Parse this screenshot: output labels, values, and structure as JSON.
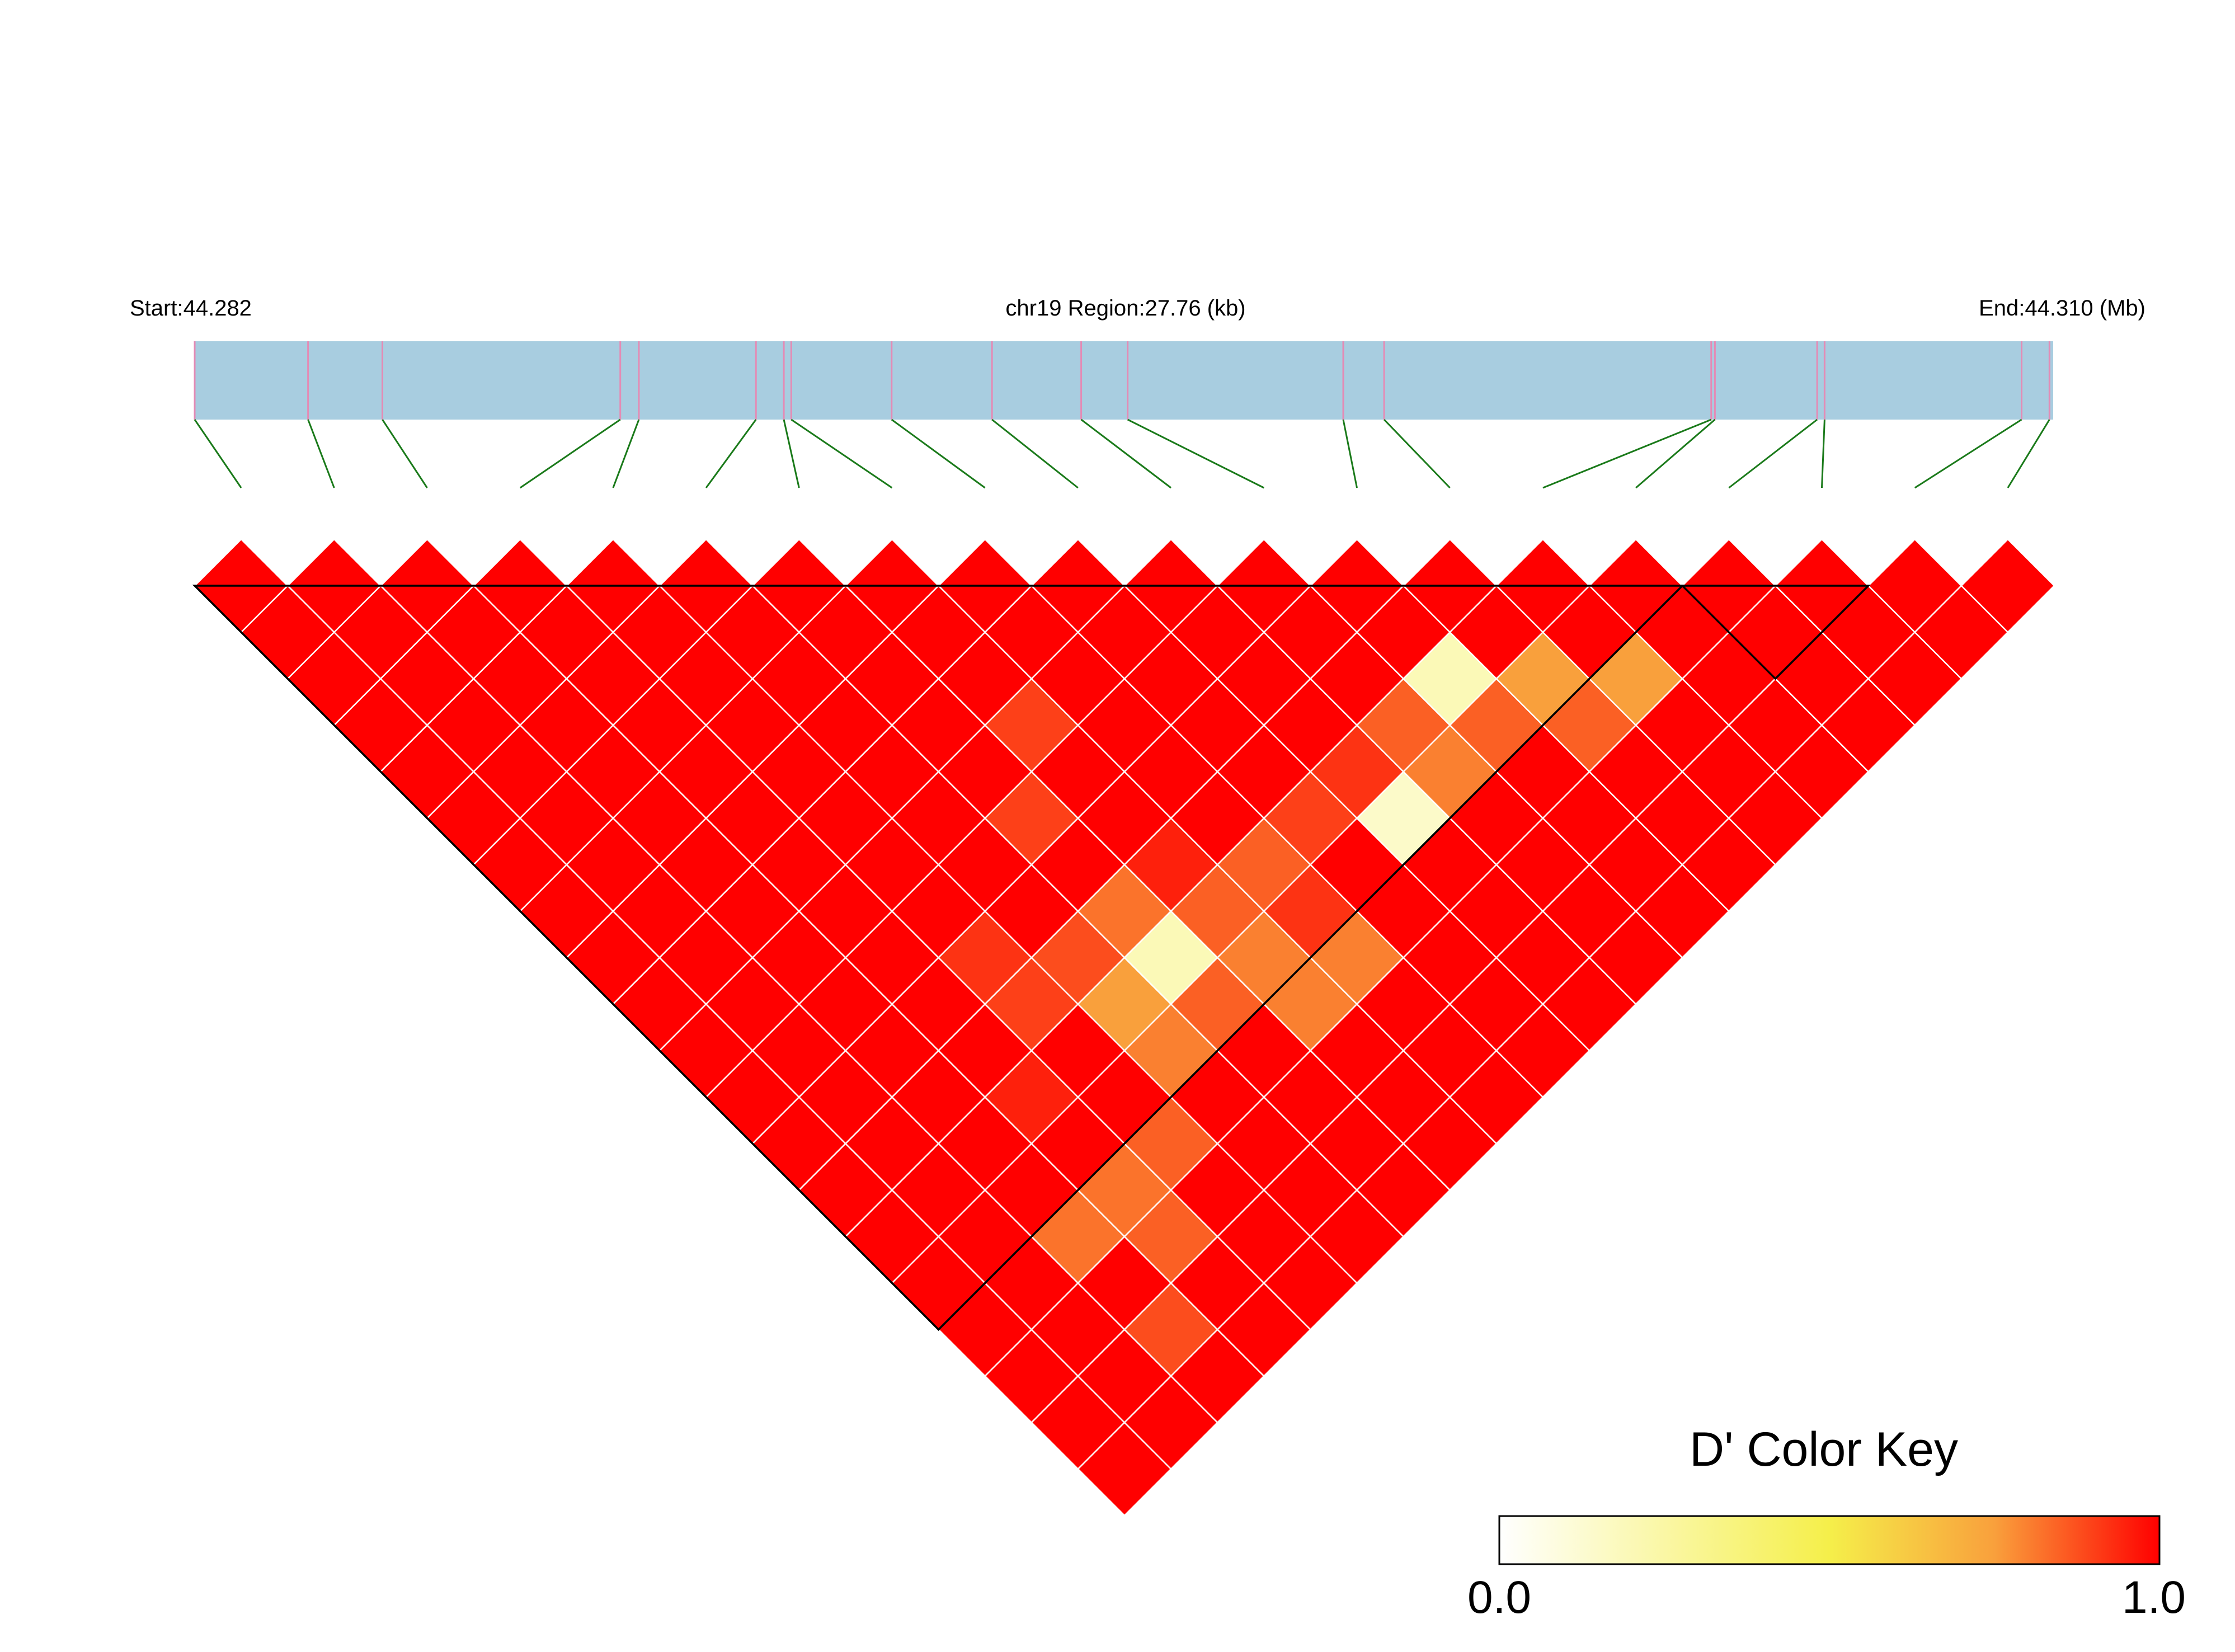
{
  "chart_data": {
    "type": "heatmap",
    "subtype": "LD-triangle",
    "header": {
      "start_label": "Start:44.282",
      "region_label": "chr19 Region:27.76 (kb)",
      "end_label": "End:44.310 (Mb)"
    },
    "snp_count": 20,
    "snp_positions_fraction": [
      0.0,
      0.061,
      0.101,
      0.229,
      0.239,
      0.302,
      0.317,
      0.321,
      0.375,
      0.429,
      0.477,
      0.502,
      0.618,
      0.64,
      0.816,
      0.818,
      0.873,
      0.877,
      0.983,
      0.998
    ],
    "d_prime_default": 1.0,
    "d_prime_exceptions": [
      {
        "i": 7,
        "j": 10,
        "value": 0.9
      },
      {
        "i": 6,
        "j": 11,
        "value": 0.9
      },
      {
        "i": 12,
        "j": 15,
        "value": 0.85
      },
      {
        "i": 13,
        "j": 15,
        "value": 0.75
      },
      {
        "i": 11,
        "j": 14,
        "value": 0.85
      },
      {
        "i": 12,
        "j": 14,
        "value": 0.2
      },
      {
        "i": 14,
        "j": 16,
        "value": 0.75
      },
      {
        "i": 10,
        "j": 14,
        "value": 0.92
      },
      {
        "i": 11,
        "j": 15,
        "value": 0.8
      },
      {
        "i": 10,
        "j": 15,
        "value": 0.15
      },
      {
        "i": 13,
        "j": 16,
        "value": 0.85
      },
      {
        "i": 9,
        "j": 14,
        "value": 0.9
      },
      {
        "i": 8,
        "j": 14,
        "value": 0.85
      },
      {
        "i": 8,
        "j": 15,
        "value": 0.92
      },
      {
        "i": 7,
        "j": 15,
        "value": 0.8
      },
      {
        "i": 7,
        "j": 14,
        "value": 0.85
      },
      {
        "i": 8,
        "j": 16,
        "value": 0.8
      },
      {
        "i": 4,
        "j": 12,
        "value": 0.92
      },
      {
        "i": 5,
        "j": 13,
        "value": 0.88
      },
      {
        "i": 6,
        "j": 13,
        "value": 0.82
      },
      {
        "i": 7,
        "j": 13,
        "value": 0.95
      },
      {
        "i": 6,
        "j": 15,
        "value": 0.85
      },
      {
        "i": 6,
        "j": 14,
        "value": 0.2
      },
      {
        "i": 7,
        "j": 16,
        "value": 0.8
      },
      {
        "i": 3,
        "j": 14,
        "value": 0.95
      },
      {
        "i": 4,
        "j": 13,
        "value": 0.9
      },
      {
        "i": 5,
        "j": 14,
        "value": 0.75
      },
      {
        "i": 5,
        "j": 15,
        "value": 0.8
      },
      {
        "i": 4,
        "j": 16,
        "value": 0.85
      },
      {
        "i": 3,
        "j": 16,
        "value": 0.82
      },
      {
        "i": 2,
        "j": 16,
        "value": 0.82
      },
      {
        "i": 3,
        "j": 17,
        "value": 0.85
      },
      {
        "i": 2,
        "j": 18,
        "value": 0.88
      }
    ],
    "blocks": [
      {
        "first": 0,
        "last": 15
      },
      {
        "first": 16,
        "last": 17
      }
    ],
    "color_scale": {
      "min": 0.0,
      "max": 1.0,
      "colors": [
        "#ffffff",
        "#f5ef4a",
        "#f9a03c",
        "#ff0000"
      ]
    },
    "legend": {
      "title": "D' Color Key",
      "min_label": "0.0",
      "max_label": "1.0",
      "placement": "bottom-right"
    }
  }
}
